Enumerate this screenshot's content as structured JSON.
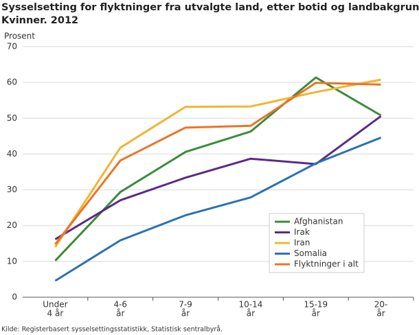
{
  "chart_data": {
    "type": "line",
    "title": [
      "Sysselsetting for flyktninger fra utvalgte land, etter botid og landbakgrunn.",
      "Kvinner. 2012"
    ],
    "y_label": "Prosent",
    "source": "Kilde: Registerbasert sysselsettingsstatistikk, Statistisk sentralbyrå.",
    "categories": [
      [
        "Under",
        "4 år"
      ],
      [
        "4-6",
        "år"
      ],
      [
        "7-9",
        "år"
      ],
      [
        "10-14",
        "år"
      ],
      [
        "15-19",
        "år"
      ],
      [
        "20-",
        "år"
      ]
    ],
    "series": [
      {
        "name": "Afghanistan",
        "color": "#3a8c3a",
        "values": [
          10.2,
          29.4,
          40.6,
          46.3,
          61.4,
          50.8
        ]
      },
      {
        "name": "Irak",
        "color": "#5c2a86",
        "values": [
          16.2,
          27.1,
          33.4,
          38.7,
          37.2,
          50.6
        ]
      },
      {
        "name": "Iran",
        "color": "#f2b531",
        "values": [
          14.0,
          41.8,
          53.2,
          53.3,
          57.3,
          60.8
        ]
      },
      {
        "name": "Somalia",
        "color": "#2b72b0",
        "values": [
          4.6,
          15.9,
          22.9,
          27.9,
          37.4,
          44.6
        ]
      },
      {
        "name": "Flyktninger i alt",
        "color": "#ec7426",
        "values": [
          14.8,
          38.2,
          47.4,
          47.9,
          59.9,
          59.4
        ]
      }
    ],
    "ylim": [
      0,
      70
    ],
    "yticks": [
      0,
      10,
      20,
      30,
      40,
      50,
      60,
      70
    ],
    "grid": true,
    "legend": "lower-right"
  }
}
